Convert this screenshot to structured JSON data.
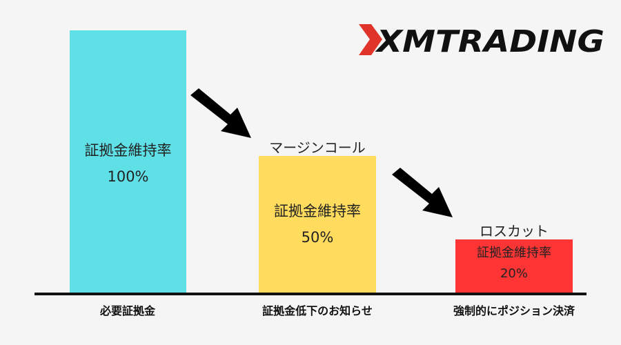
{
  "logo": {
    "text": "XMTRADING"
  },
  "colors": {
    "background": "#f5f5f5",
    "bar1": "#5ee0e6",
    "bar2": "#ffdc5e",
    "bar3": "#ff3434",
    "arrow": "#000000"
  },
  "stages": [
    {
      "bar_label": "証拠金維持率",
      "percent": "100%",
      "above_label": "",
      "axis_label": "必要証拠金"
    },
    {
      "bar_label": "証拠金維持率",
      "percent": "50%",
      "above_label": "マージンコール",
      "axis_label": "証拠金低下のお知らせ"
    },
    {
      "bar_label": "証拠金維持率",
      "percent": "20%",
      "above_label": "ロスカット",
      "axis_label": "強制的にポジション決済"
    }
  ]
}
